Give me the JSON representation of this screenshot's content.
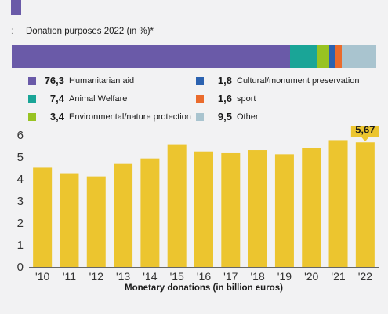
{
  "donation_purposes": {
    "title": "Donation purposes 2022 (in %)*",
    "items": [
      {
        "value": 76.3,
        "value_label": "76,3",
        "label": "Humanitarian aid",
        "color": "#6a5aa8"
      },
      {
        "value": 7.4,
        "value_label": "7,4",
        "label": "Animal Welfare",
        "color": "#1aa597"
      },
      {
        "value": 3.4,
        "value_label": "3,4",
        "label": "Environmental/nature protection",
        "color": "#98c322"
      },
      {
        "value": 1.8,
        "value_label": "1,8",
        "label": "Cultural/monument preservation",
        "color": "#2b62b0"
      },
      {
        "value": 1.6,
        "value_label": "1,6",
        "label": "sport",
        "color": "#ea6b2c"
      },
      {
        "value": 9.5,
        "value_label": "9,5",
        "label": "Other",
        "color": "#a9c4cf"
      }
    ]
  },
  "chart_data": {
    "type": "bar",
    "categories": [
      "'10",
      "'11",
      "'12",
      "'13",
      "'14",
      "'15",
      "'16",
      "'17",
      "'18",
      "'19",
      "'20",
      "'21",
      "'22"
    ],
    "values": [
      4.52,
      4.23,
      4.12,
      4.69,
      4.94,
      5.55,
      5.26,
      5.18,
      5.32,
      5.13,
      5.4,
      5.77,
      5.67
    ],
    "xlabel": "Monetary donations (in billion euros)",
    "ylabel": "",
    "ylim": [
      0,
      6
    ],
    "yticks": [
      0,
      1,
      2,
      3,
      4,
      5,
      6
    ],
    "grid": false,
    "bar_color": "#ecc52f",
    "annotation": {
      "index": 12,
      "text": "5,67"
    }
  }
}
